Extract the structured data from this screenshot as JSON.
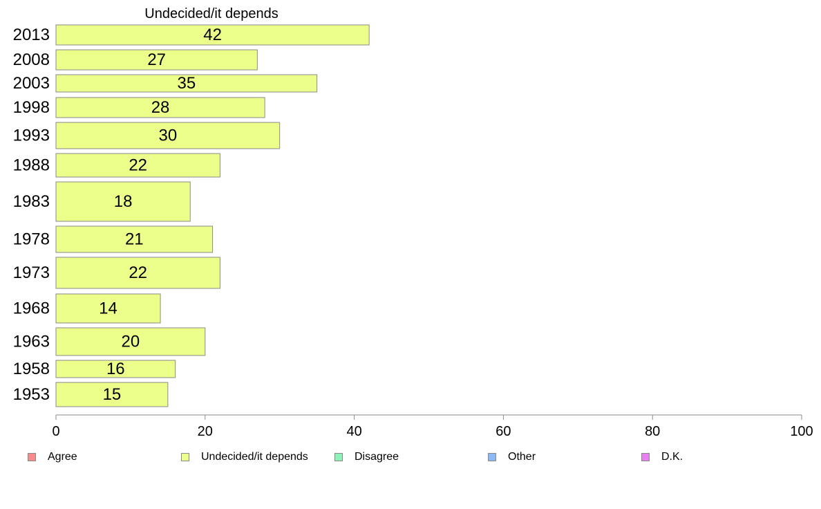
{
  "chart_data": {
    "type": "bar",
    "orientation": "horizontal",
    "title": "Undecided/it depends",
    "categories": [
      "2013",
      "2008",
      "2003",
      "1998",
      "1993",
      "1988",
      "1983",
      "1978",
      "1973",
      "1968",
      "1963",
      "1958",
      "1953"
    ],
    "series": [
      {
        "name": "Undecided/it depends",
        "values": [
          42,
          27,
          35,
          28,
          30,
          22,
          18,
          21,
          22,
          14,
          20,
          16,
          15
        ]
      }
    ],
    "data_labels": [
      "42",
      "27",
      "35",
      "28",
      "30",
      "22",
      "18",
      "21",
      "22",
      "14",
      "20",
      "16",
      "15"
    ],
    "xlim": [
      0,
      100
    ],
    "x_ticks": [
      "0",
      "20",
      "40",
      "60",
      "80",
      "100"
    ],
    "grid": false,
    "legend_position": "bottom",
    "bar_color": "#ebff8a"
  },
  "legend": [
    {
      "label": "Agree",
      "color": "#f88c8c"
    },
    {
      "label": "Undecided/it depends",
      "color": "#ebff8a"
    },
    {
      "label": "Disagree",
      "color": "#8cf2b8"
    },
    {
      "label": "Other",
      "color": "#8cb8f8"
    },
    {
      "label": "D.K.",
      "color": "#ea80f0"
    }
  ]
}
